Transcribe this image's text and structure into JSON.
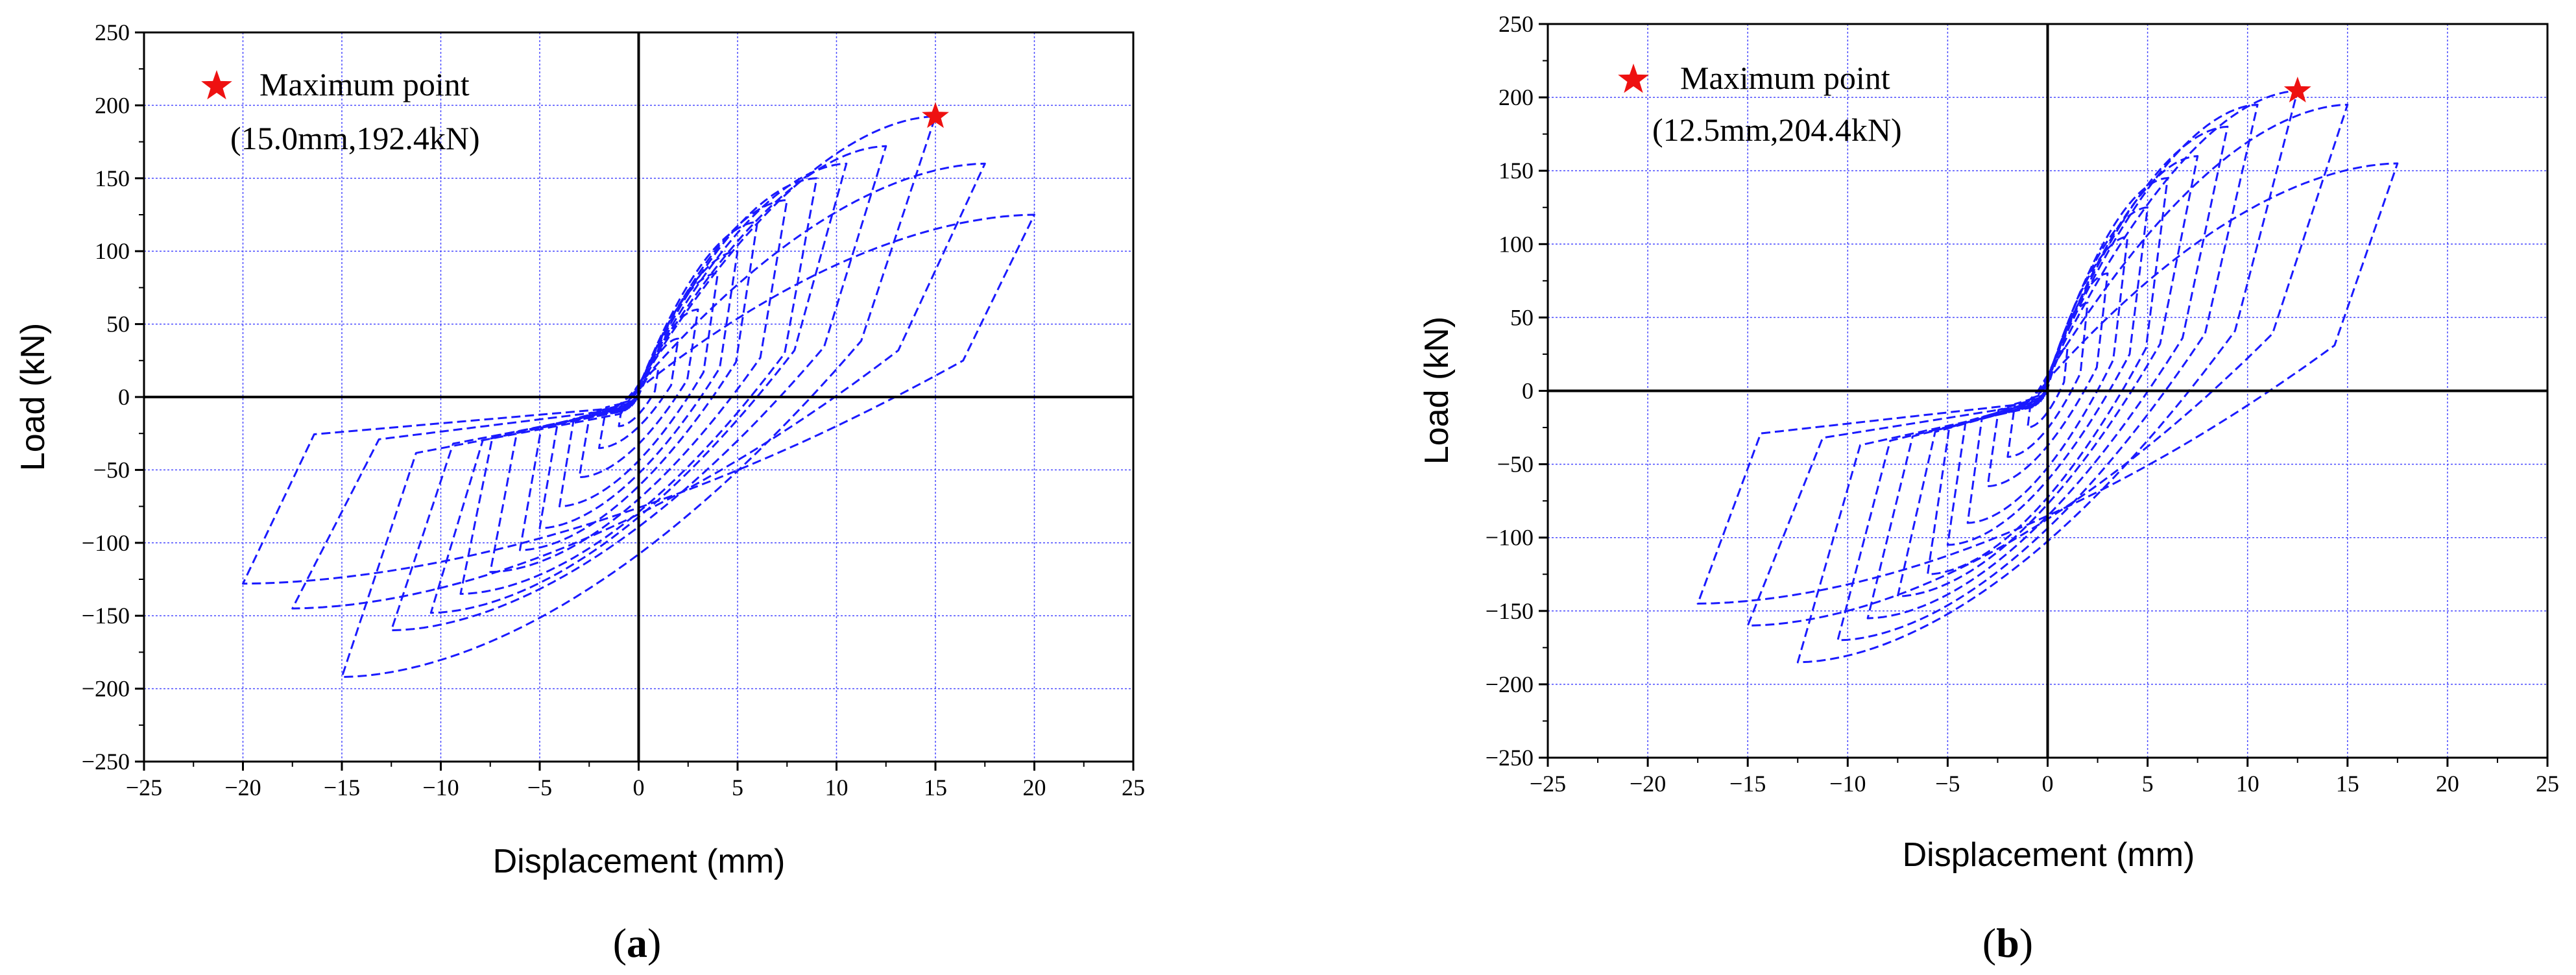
{
  "figure": {
    "panels": [
      {
        "caption_open": "(",
        "caption_letter": "a",
        "caption_close": ")"
      },
      {
        "caption_open": "(",
        "caption_letter": "b",
        "caption_close": ")"
      }
    ]
  },
  "chart_data": [
    {
      "type": "line",
      "title": "",
      "xlabel": "Displacement (mm)",
      "ylabel": "Load (kN)",
      "xlim": [
        -25,
        25
      ],
      "ylim": [
        -250,
        250
      ],
      "xticks": [
        -25,
        -20,
        -15,
        -10,
        -5,
        0,
        5,
        10,
        15,
        20,
        25
      ],
      "yticks": [
        -250,
        -200,
        -150,
        -100,
        -50,
        0,
        50,
        100,
        150,
        200,
        250
      ],
      "xtick_labels": [
        "−25",
        "−20",
        "−15",
        "−10",
        "−5",
        "0",
        "5",
        "10",
        "15",
        "20",
        "25"
      ],
      "ytick_labels": [
        "−250",
        "−200",
        "−150",
        "−100",
        "−50",
        "0",
        "50",
        "100",
        "150",
        "200",
        "250"
      ],
      "grid": true,
      "series_color": "#1a1aff",
      "marker_color": "#ee1111",
      "legend": {
        "label": "Maximum point",
        "annotation": "(15.0mm,192.4kN)",
        "position": "top-left"
      },
      "max_point": {
        "x": 15.0,
        "y": 192.4
      },
      "loops": [
        {
          "dp": 1,
          "lp": 20,
          "dn": -1,
          "ln": -20
        },
        {
          "dp": 2,
          "lp": 40,
          "dn": -2,
          "ln": -35
        },
        {
          "dp": 3,
          "lp": 60,
          "dn": -3,
          "ln": -55
        },
        {
          "dp": 4,
          "lp": 85,
          "dn": -4,
          "ln": -75
        },
        {
          "dp": 5,
          "lp": 100,
          "dn": -5,
          "ln": -90
        },
        {
          "dp": 6,
          "lp": 120,
          "dn": -6,
          "ln": -105
        },
        {
          "dp": 7.5,
          "lp": 135,
          "dn": -7.5,
          "ln": -120
        },
        {
          "dp": 9,
          "lp": 150,
          "dn": -9,
          "ln": -135
        },
        {
          "dp": 10.5,
          "lp": 160,
          "dn": -10.5,
          "ln": -148
        },
        {
          "dp": 12.5,
          "lp": 172,
          "dn": -12.5,
          "ln": -160
        },
        {
          "dp": 15,
          "lp": 192.4,
          "dn": -15,
          "ln": -192
        },
        {
          "dp": 17.5,
          "lp": 160,
          "dn": -17.5,
          "ln": -145
        },
        {
          "dp": 20,
          "lp": 125,
          "dn": -20,
          "ln": -128
        }
      ]
    },
    {
      "type": "line",
      "title": "",
      "xlabel": "Displacement (mm)",
      "ylabel": "Load (kN)",
      "xlim": [
        -25,
        25
      ],
      "ylim": [
        -250,
        250
      ],
      "xticks": [
        -25,
        -20,
        -15,
        -10,
        -5,
        0,
        5,
        10,
        15,
        20,
        25
      ],
      "yticks": [
        -250,
        -200,
        -150,
        -100,
        -50,
        0,
        50,
        100,
        150,
        200,
        250
      ],
      "xtick_labels": [
        "−25",
        "−20",
        "−15",
        "−10",
        "−5",
        "0",
        "5",
        "10",
        "15",
        "20",
        "25"
      ],
      "ytick_labels": [
        "−250",
        "−200",
        "−150",
        "−100",
        "−50",
        "0",
        "50",
        "100",
        "150",
        "200",
        "250"
      ],
      "grid": true,
      "series_color": "#1a1aff",
      "marker_color": "#ee1111",
      "legend": {
        "label": "Maximum point",
        "annotation": "(12.5mm,204.4kN)",
        "position": "top-left"
      },
      "max_point": {
        "x": 12.5,
        "y": 204.4
      },
      "loops": [
        {
          "dp": 1,
          "lp": 30,
          "dn": -1,
          "ln": -25
        },
        {
          "dp": 2,
          "lp": 60,
          "dn": -2,
          "ln": -45
        },
        {
          "dp": 3,
          "lp": 80,
          "dn": -3,
          "ln": -65
        },
        {
          "dp": 4,
          "lp": 105,
          "dn": -4,
          "ln": -90
        },
        {
          "dp": 5,
          "lp": 125,
          "dn": -5,
          "ln": -105
        },
        {
          "dp": 6,
          "lp": 145,
          "dn": -6,
          "ln": -125
        },
        {
          "dp": 7.5,
          "lp": 160,
          "dn": -7.5,
          "ln": -140
        },
        {
          "dp": 9,
          "lp": 180,
          "dn": -9,
          "ln": -155
        },
        {
          "dp": 10.5,
          "lp": 195,
          "dn": -10.5,
          "ln": -170
        },
        {
          "dp": 12.5,
          "lp": 204.4,
          "dn": -12.5,
          "ln": -185
        },
        {
          "dp": 15,
          "lp": 195,
          "dn": -15,
          "ln": -160
        },
        {
          "dp": 17.5,
          "lp": 155,
          "dn": -17.5,
          "ln": -145
        }
      ]
    }
  ]
}
